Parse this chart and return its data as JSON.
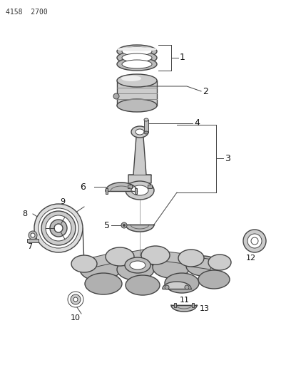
{
  "title": "4158  2700",
  "background_color": "#ffffff",
  "line_color": "#444444",
  "label_color": "#111111",
  "gray_fill": "#cccccc",
  "dark_gray": "#888888",
  "light_gray": "#dddddd"
}
